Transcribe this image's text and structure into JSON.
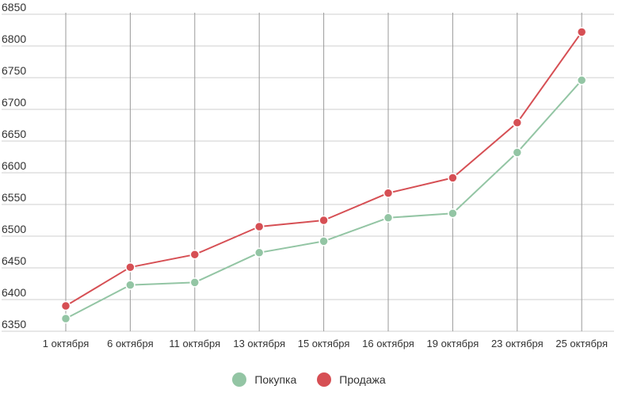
{
  "chart_data": {
    "type": "line",
    "categories": [
      "1 октября",
      "6 октября",
      "11 октября",
      "13 октября",
      "15 октября",
      "16 октября",
      "19 октября",
      "23 октября",
      "25 октября"
    ],
    "y_ticks": [
      "6350",
      "6400",
      "6450",
      "6500",
      "6550",
      "6600",
      "6650",
      "6700",
      "6750",
      "6800",
      "6850"
    ],
    "ylim": [
      6350,
      6850
    ],
    "grid": true,
    "legend_position": "bottom",
    "series": [
      {
        "name": "Покупка",
        "color": "#93c5a4",
        "values": [
          6370,
          6423,
          6427,
          6474,
          6492,
          6529,
          6536,
          6632,
          6746
        ]
      },
      {
        "name": "Продажа",
        "color": "#d64f54",
        "values": [
          6390,
          6451,
          6471,
          6515,
          6525,
          6568,
          6592,
          6679,
          6822
        ]
      }
    ]
  }
}
